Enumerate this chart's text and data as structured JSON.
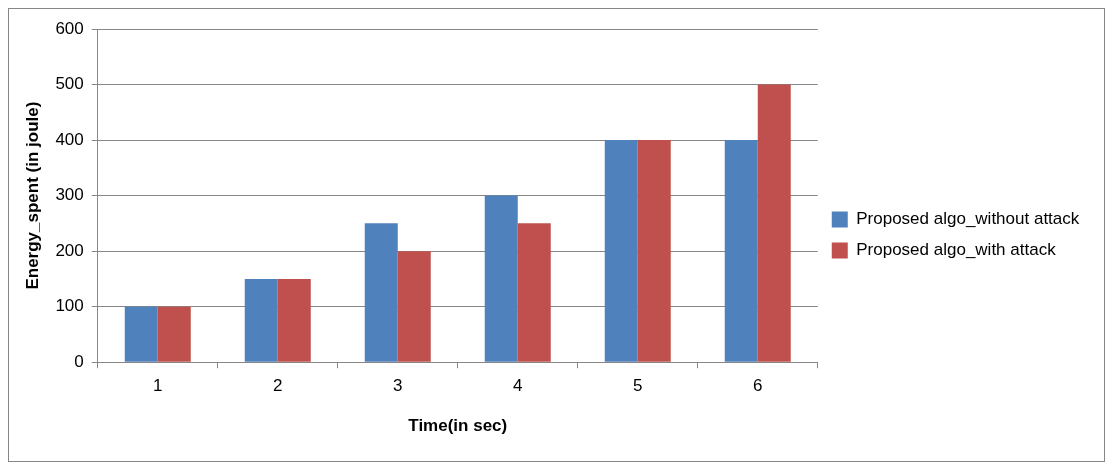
{
  "chart_data": {
    "type": "bar",
    "xlabel": "Time(in sec)",
    "ylabel": "Energy_spent (in joule)",
    "categories": [
      "1",
      "2",
      "3",
      "4",
      "5",
      "6"
    ],
    "series": [
      {
        "name": "Proposed algo_without attack",
        "color": "#4f81bd",
        "values": [
          100,
          150,
          250,
          300,
          400,
          400
        ]
      },
      {
        "name": "Proposed algo_with attack",
        "color": "#c0504d",
        "values": [
          100,
          150,
          200,
          250,
          400,
          500
        ]
      }
    ],
    "ylim": [
      0,
      600
    ],
    "yticks": [
      0,
      100,
      200,
      300,
      400,
      500,
      600
    ],
    "grid": "y",
    "legend": "right"
  }
}
